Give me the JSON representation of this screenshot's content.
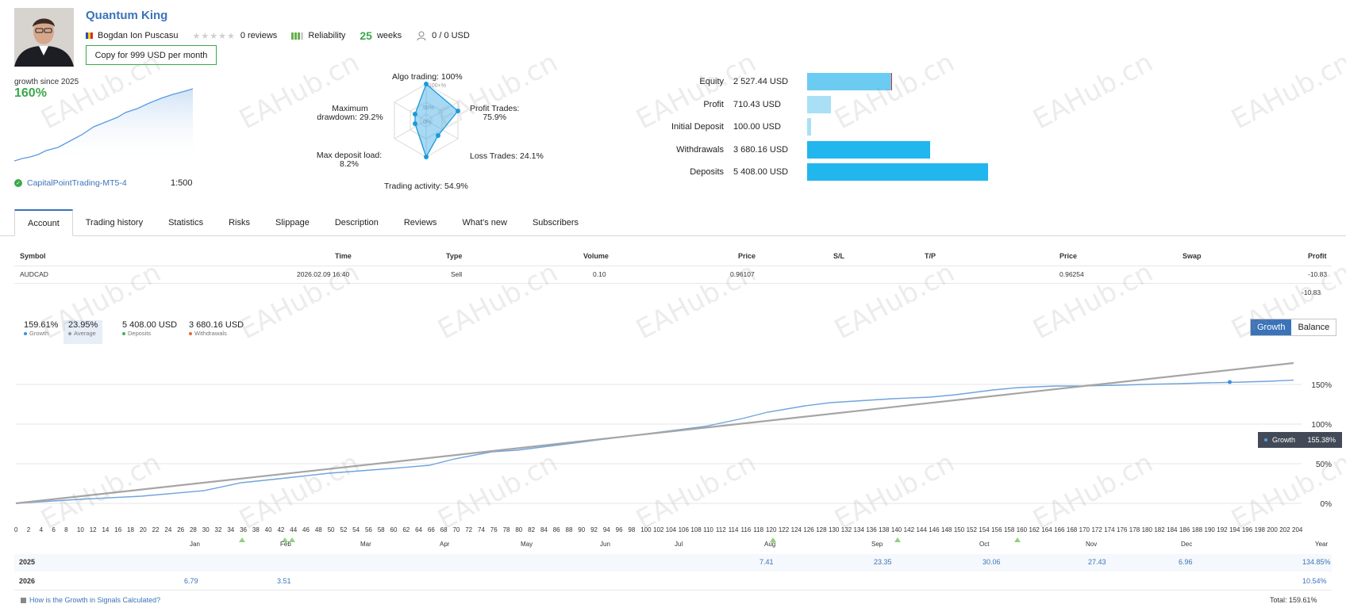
{
  "profile": {
    "name": "Quantum King",
    "author": "Bogdan Ion Puscasu",
    "stars": "★★★★★",
    "reviews": "0 reviews",
    "reliability_label": "Reliability",
    "weeks_num": "25",
    "weeks_label": "weeks",
    "subscribers": "0 / 0 USD",
    "copy_button": "Copy for 999 USD per month"
  },
  "growth": {
    "label": "growth since 2025",
    "value": "160%",
    "account": "CapitalPointTrading-MT5-4",
    "leverage": "1:500"
  },
  "radar": {
    "algo": "Algo trading: 100%",
    "profit_trades_1": "Profit Trades:",
    "profit_trades_2": "75.9%",
    "loss_trades": "Loss Trades: 24.1%",
    "activity": "Trading activity: 54.9%",
    "deposit_load_1": "Max deposit load:",
    "deposit_load_2": "8.2%",
    "drawdown_1": "Maximum",
    "drawdown_2": "drawdown: 29.2%",
    "ring_outer": "100+%",
    "ring_mid": "50%",
    "ring_inner": "0%",
    "values": {
      "algo": 100,
      "profit_trades": 75.9,
      "loss_trades": 24.1,
      "activity": 54.9,
      "deposit_load": 8.2,
      "drawdown": 29.2
    }
  },
  "balances": [
    {
      "label": "Equity",
      "value": "2 527.44 USD",
      "amount": 2527.44,
      "color": "#6ccbf1"
    },
    {
      "label": "Profit",
      "value": "710.43 USD",
      "amount": 710.43,
      "color": "#a9e0f6"
    },
    {
      "label": "Initial Deposit",
      "value": "100.00 USD",
      "amount": 100.0,
      "color": "#a9e0f6"
    },
    {
      "label": "Withdrawals",
      "value": "3 680.16 USD",
      "amount": 3680.16,
      "color": "#22b6ee"
    },
    {
      "label": "Deposits",
      "value": "5 408.00 USD",
      "amount": 5408.0,
      "color": "#22b6ee"
    }
  ],
  "tabs": [
    "Account",
    "Trading history",
    "Statistics",
    "Risks",
    "Slippage",
    "Description",
    "Reviews",
    "What's new",
    "Subscribers"
  ],
  "positions": {
    "headers": [
      "Symbol",
      "Time",
      "Type",
      "Volume",
      "Price",
      "S/L",
      "T/P",
      "Price",
      "Swap",
      "Profit"
    ],
    "row": [
      "AUDCAD",
      "2026.02.09 16:40",
      "Sell",
      "0.10",
      "0.96107",
      "",
      "",
      "0.96254",
      "",
      "-10.83"
    ],
    "total": "-10.83"
  },
  "legend": [
    {
      "value": "159.61%",
      "label": "Growth",
      "color": "#3b8fe0"
    },
    {
      "value": "23.95%",
      "label": "Average",
      "color": "#9a9a9a"
    },
    {
      "value": "5 408.00 USD",
      "label": "Deposits",
      "color": "#4caf50"
    },
    {
      "value": "3 680.16 USD",
      "label": "Withdrawals",
      "color": "#e8692f"
    }
  ],
  "toggle": {
    "growth": "Growth",
    "balance": "Balance"
  },
  "chart_data": {
    "type": "line",
    "yticks": [
      "150%",
      "100%",
      "50%",
      "0%"
    ],
    "ylim": [
      0,
      175
    ],
    "xlim": [
      0,
      204
    ],
    "xticks_step": 2,
    "months": [
      "Jan",
      "Feb",
      "Mar",
      "Apr",
      "May",
      "Jun",
      "Jul",
      "Aug",
      "Sep",
      "Oct",
      "Nov",
      "Dec",
      "Year"
    ],
    "series": [
      {
        "name": "Growth",
        "color": "#6fa4dd",
        "x": [
          0,
          10,
          20,
          30,
          36,
          42,
          50,
          60,
          66,
          70,
          76,
          80,
          90,
          100,
          110,
          116,
          120,
          126,
          130,
          136,
          140,
          146,
          150,
          156,
          160,
          166,
          170,
          176,
          180,
          186,
          190,
          196,
          200,
          204
        ],
        "y": [
          0,
          5,
          9,
          16,
          26,
          31,
          38,
          44,
          48,
          56,
          65,
          67,
          77,
          87,
          97,
          107,
          115,
          123,
          127,
          130,
          132,
          134,
          137,
          143,
          146,
          148,
          148,
          149,
          150,
          151,
          152,
          153,
          154,
          155.38
        ]
      },
      {
        "name": "Average",
        "color": "#a5a5a5",
        "x": [
          0,
          204
        ],
        "y": [
          0,
          177
        ]
      }
    ],
    "tooltip": {
      "label": "Growth",
      "value": "155.38%"
    }
  },
  "yearly": {
    "rows": [
      {
        "year": "2025",
        "cells": [
          "",
          "",
          "",
          "",
          "",
          "",
          "",
          "7.41",
          "23.35",
          "30.06",
          "27.43",
          "6.96"
        ],
        "total": "134.85%"
      },
      {
        "year": "2026",
        "cells": [
          "6.79",
          "3.51",
          "",
          "",
          "",
          "",
          "",
          "",
          "",
          "",
          "",
          ""
        ],
        "total": "10.54%"
      }
    ],
    "faq": "How is the Growth in Signals Calculated?",
    "total": "Total: 159.61%"
  },
  "watermark": "EAHub.cn"
}
